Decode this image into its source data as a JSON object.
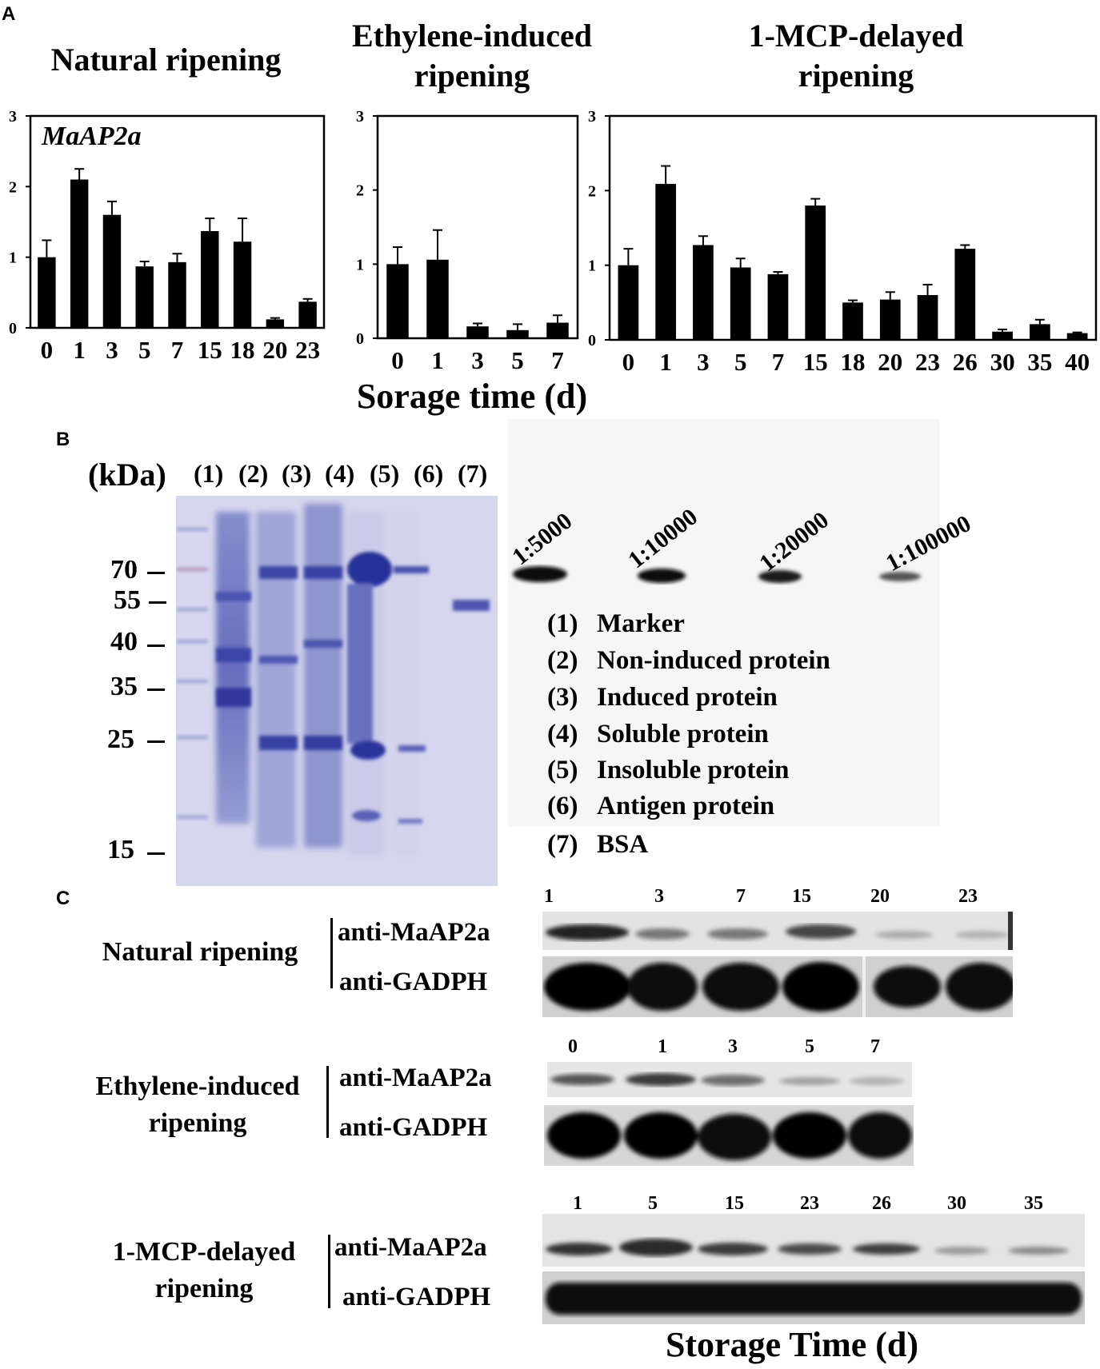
{
  "panelA": {
    "letter": "A",
    "xlabel": "Sorage time (d)",
    "charts": [
      {
        "title": [
          "Natural ripening"
        ],
        "gene": "MaAP2a"
      },
      {
        "title": [
          "Ethylene-induced",
          "ripening"
        ],
        "gene": ""
      },
      {
        "title": [
          "1-MCP-delayed",
          "ripening"
        ],
        "gene": ""
      }
    ]
  },
  "chart_data": [
    {
      "type": "bar",
      "title": "Natural ripening",
      "annotation": "MaAP2a",
      "categories": [
        "0",
        "1",
        "3",
        "5",
        "7",
        "15",
        "18",
        "20",
        "23"
      ],
      "values": [
        1.0,
        2.1,
        1.6,
        0.87,
        0.93,
        1.37,
        1.22,
        0.12,
        0.37
      ],
      "errors": [
        0.24,
        0.15,
        0.19,
        0.07,
        0.12,
        0.18,
        0.33,
        0.02,
        0.04
      ],
      "ylim": [
        0,
        3
      ],
      "yticks": [
        0,
        1,
        2,
        3
      ],
      "color": "#000000"
    },
    {
      "type": "bar",
      "title": "Ethylene-induced ripening",
      "categories": [
        "0",
        "1",
        "3",
        "5",
        "7"
      ],
      "values": [
        1.0,
        1.06,
        0.16,
        0.11,
        0.21
      ],
      "errors": [
        0.23,
        0.4,
        0.04,
        0.08,
        0.1
      ],
      "ylim": [
        0,
        3
      ],
      "yticks": [
        0,
        1,
        2,
        3
      ],
      "color": "#000000"
    },
    {
      "type": "bar",
      "title": "1-MCP-delayed ripening",
      "categories": [
        "0",
        "1",
        "3",
        "5",
        "7",
        "15",
        "18",
        "20",
        "23",
        "26",
        "30",
        "35",
        "40"
      ],
      "values": [
        1.0,
        2.09,
        1.27,
        0.97,
        0.88,
        1.8,
        0.5,
        0.54,
        0.6,
        1.22,
        0.11,
        0.21,
        0.09
      ],
      "errors": [
        0.22,
        0.24,
        0.12,
        0.12,
        0.03,
        0.09,
        0.03,
        0.1,
        0.14,
        0.05,
        0.03,
        0.06,
        0.01
      ],
      "ylim": [
        0,
        3
      ],
      "yticks": [
        0,
        1,
        2,
        3
      ],
      "color": "#000000"
    }
  ],
  "panelB": {
    "letter": "B",
    "kda": "(kDa)",
    "lanes": [
      "(1)",
      "(2)",
      "(3)",
      "(4)",
      "(5)",
      "(6)",
      "(7)"
    ],
    "markers": [
      "70",
      "55",
      "40",
      "35",
      "25",
      "15"
    ],
    "dilutions": [
      "1:5000",
      "1:10000",
      "1:20000",
      "1:100000"
    ],
    "legend": [
      {
        "num": "(1)",
        "text": "Marker"
      },
      {
        "num": "(2)",
        "text": "Non-induced protein"
      },
      {
        "num": "(3)",
        "text": "Induced protein"
      },
      {
        "num": "(4)",
        "text": "Soluble protein"
      },
      {
        "num": "(5)",
        "text": "Insoluble protein"
      },
      {
        "num": "(6)",
        "text": "Antigen protein"
      },
      {
        "num": "(7)",
        "text": "BSA"
      }
    ]
  },
  "panelC": {
    "letter": "C",
    "xlabel": "Storage Time (d)",
    "antibodies": [
      "anti-MaAP2a",
      "anti-GADPH"
    ],
    "groups": [
      {
        "label": [
          "Natural ripening"
        ],
        "lanes": [
          "1",
          "3",
          "7",
          "15",
          "20",
          "23"
        ]
      },
      {
        "label": [
          "Ethylene-induced",
          "ripening"
        ],
        "lanes": [
          "0",
          "1",
          "3",
          "5",
          "7"
        ]
      },
      {
        "label": [
          "1-MCP-delayed",
          "ripening"
        ],
        "lanes": [
          "1",
          "5",
          "15",
          "23",
          "26",
          "30",
          "35"
        ]
      }
    ]
  }
}
